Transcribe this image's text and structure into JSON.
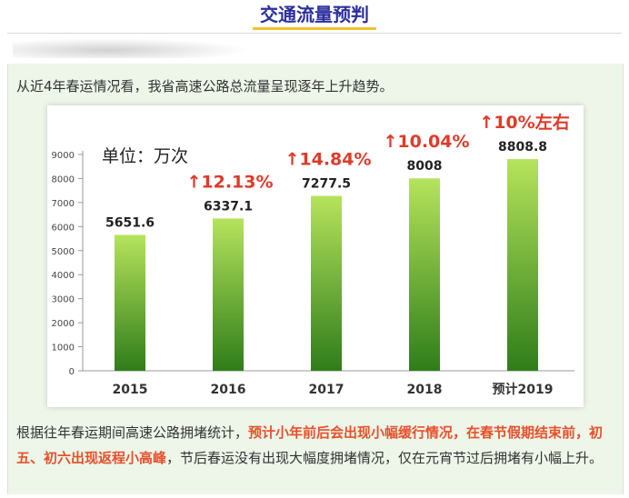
{
  "header": {
    "title": "交通流量预判"
  },
  "intro_text": "从近4年春运情况看，我省高速公路总流量呈现逐年上升趋势。",
  "chart_data": {
    "type": "bar",
    "unit_label": "单位：万次",
    "categories": [
      "2015",
      "2016",
      "2017",
      "2018",
      "预计2019"
    ],
    "values": [
      5651.6,
      6337.1,
      7277.5,
      8008,
      8808.8
    ],
    "value_labels": [
      "5651.6",
      "6337.1",
      "7277.5",
      "8008",
      "8808.8"
    ],
    "growth_labels": [
      "",
      "↑12.13%",
      "↑14.84%",
      "↑10.04%",
      "↑10%左右"
    ],
    "y_ticks": [
      "0",
      "1000",
      "2000",
      "3000",
      "4000",
      "5000",
      "6000",
      "7000",
      "8000",
      "9000"
    ],
    "ylim": [
      0,
      9000
    ],
    "grid": false,
    "colors": {
      "bar_top": "#b6e35c",
      "bar_bottom": "#2f7d1a",
      "growth": "#e03a2a"
    }
  },
  "bottom_text": {
    "part1": "根据往年春运期间高速公路拥堵统计，",
    "part2_highlight": "预计小年前后会出现小幅缓行情况，在春节假期结束前，初五、初六出现返程小高峰",
    "part3": "，节后春运没有出现大幅度拥堵情况，仅在元宵节过后拥堵有小幅上升。"
  }
}
